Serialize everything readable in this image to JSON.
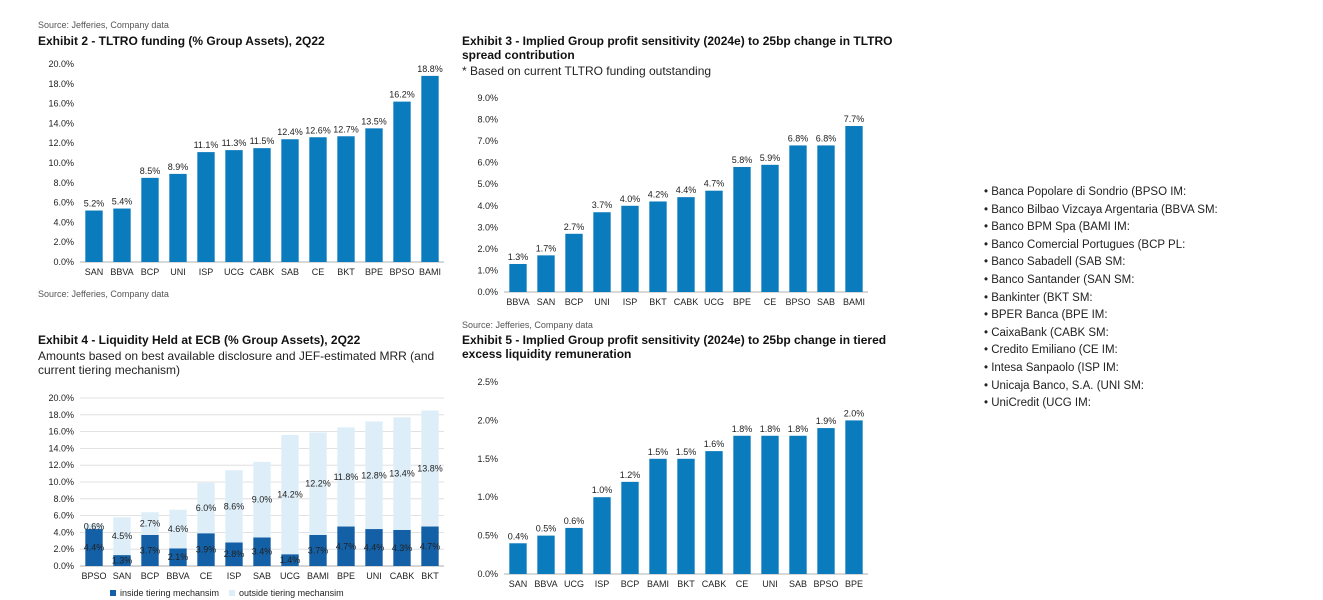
{
  "exhibit2": {
    "source": "Source: Jefferies, Company data",
    "title": "Exhibit 2 - TLTRO funding (% Group Assets), 2Q22"
  },
  "exhibit3": {
    "title_line1": "Exhibit 3 - Implied Group profit sensitivity (2024e) to 25bp change in TLTRO",
    "title_line2": "spread contribution",
    "subtitle": "* Based on current TLTRO funding outstanding",
    "source_below": "Source: Jefferies, Company data"
  },
  "exhibit4": {
    "source": "Source: Jefferies, Company data",
    "title": "Exhibit 4 - Liquidity Held at ECB (% Group Assets), 2Q22",
    "subtitle_line1": "Amounts based on best available disclosure and JEF-estimated MRR (and",
    "subtitle_line2": "current tiering mechanism)"
  },
  "exhibit5": {
    "title_line1": "Exhibit 5 - Implied Group profit sensitivity (2024e) to 25bp change in tiered",
    "title_line2": "excess liquidity remuneration"
  },
  "bank_list": [
    "• Banca Popolare di Sondrio (BPSO IM:",
    "• Banco Bilbao Vizcaya Argentaria (BBVA SM:",
    "• Banco BPM Spa (BAMI IM:",
    "• Banco Comercial Portugues (BCP PL:",
    "• Banco Sabadell (SAB SM:",
    "• Banco Santander (SAN SM:",
    "• Bankinter (BKT SM:",
    "• BPER Banca (BPE IM:",
    "• CaixaBank (CABK SM:",
    "• Credito Emiliano (CE IM:",
    "• Intesa Sanpaolo (ISP IM:",
    "• Unicaja Banco, S.A. (UNI SM:",
    "• UniCredit (UCG IM:"
  ],
  "colors": {
    "bar": "#0a7bbd",
    "light": "#ddeef8",
    "dark": "#1460a6"
  },
  "chart_data": [
    {
      "id": "ex2",
      "type": "bar",
      "categories": [
        "SAN",
        "BBVA",
        "BCP",
        "UNI",
        "ISP",
        "UCG",
        "CABK",
        "SAB",
        "CE",
        "BKT",
        "BPE",
        "BPSO",
        "BAMI"
      ],
      "values": [
        5.2,
        5.4,
        8.5,
        8.9,
        11.1,
        11.3,
        11.5,
        12.4,
        12.6,
        12.7,
        13.5,
        16.2,
        18.8
      ],
      "labels": [
        "5.2%",
        "5.4%",
        "8.5%",
        "8.9%",
        "11.1%",
        "11.3%",
        "11.5%",
        "12.4%",
        "12.6%",
        "12.7%",
        "13.5%",
        "16.2%",
        "18.8%"
      ],
      "ylim": [
        0,
        20
      ],
      "yticks": [
        "0.0%",
        "2.0%",
        "4.0%",
        "6.0%",
        "8.0%",
        "10.0%",
        "12.0%",
        "14.0%",
        "16.0%",
        "18.0%",
        "20.0%"
      ],
      "title": "Exhibit 2 - TLTRO funding (% Group Assets), 2Q22",
      "grid": false
    },
    {
      "id": "ex3",
      "type": "bar",
      "categories": [
        "BBVA",
        "SAN",
        "BCP",
        "UNI",
        "ISP",
        "BKT",
        "CABK",
        "UCG",
        "BPE",
        "CE",
        "BPSO",
        "SAB",
        "BAMI"
      ],
      "values": [
        1.3,
        1.7,
        2.7,
        3.7,
        4.0,
        4.2,
        4.4,
        4.7,
        5.8,
        5.9,
        6.8,
        6.8,
        7.7
      ],
      "labels": [
        "1.3%",
        "1.7%",
        "2.7%",
        "3.7%",
        "4.0%",
        "4.2%",
        "4.4%",
        "4.7%",
        "5.8%",
        "5.9%",
        "6.8%",
        "6.8%",
        "7.7%"
      ],
      "ylim": [
        0,
        9
      ],
      "yticks": [
        "0.0%",
        "1.0%",
        "2.0%",
        "3.0%",
        "4.0%",
        "5.0%",
        "6.0%",
        "7.0%",
        "8.0%",
        "9.0%"
      ],
      "title": "Exhibit 3 - Implied Group profit sensitivity (2024e) to 25bp change in TLTRO spread contribution",
      "grid": false
    },
    {
      "id": "ex4",
      "type": "bar",
      "stacked": true,
      "categories": [
        "BPSO",
        "SAN",
        "BCP",
        "BBVA",
        "CE",
        "ISP",
        "SAB",
        "UCG",
        "BAMI",
        "BPE",
        "UNI",
        "CABK",
        "BKT"
      ],
      "series": [
        {
          "name": "inside tiering mechansim",
          "values": [
            4.4,
            1.3,
            3.7,
            2.1,
            3.9,
            2.8,
            3.4,
            1.4,
            3.7,
            4.7,
            4.4,
            4.3,
            4.7
          ],
          "labels": [
            "4.4%",
            "1.3%",
            "3.7%",
            "2.1%",
            "3.9%",
            "2.8%",
            "3.4%",
            "1.4%",
            "3.7%",
            "4.7%",
            "4.4%",
            "4.3%",
            "4.7%"
          ]
        },
        {
          "name": "outside tiering mechansim",
          "values": [
            0.6,
            4.5,
            2.7,
            4.6,
            6.0,
            8.6,
            9.0,
            14.2,
            12.2,
            11.8,
            12.8,
            13.4,
            13.8
          ],
          "labels": [
            "0.6%",
            "4.5%",
            "2.7%",
            "4.6%",
            "6.0%",
            "8.6%",
            "9.0%",
            "14.2%",
            "12.2%",
            "11.8%",
            "12.8%",
            "13.4%",
            "13.8%"
          ]
        }
      ],
      "ylim": [
        0,
        20
      ],
      "yticks": [
        "0.0%",
        "2.0%",
        "4.0%",
        "6.0%",
        "8.0%",
        "10.0%",
        "12.0%",
        "14.0%",
        "16.0%",
        "18.0%",
        "20.0%"
      ],
      "title": "Exhibit 4 - Liquidity Held at ECB (% Group Assets), 2Q22",
      "legend": "bottom",
      "grid": true
    },
    {
      "id": "ex5",
      "type": "bar",
      "categories": [
        "SAN",
        "BBVA",
        "UCG",
        "ISP",
        "BCP",
        "BAMI",
        "BKT",
        "CABK",
        "CE",
        "UNI",
        "SAB",
        "BPSO",
        "BPE"
      ],
      "values": [
        0.4,
        0.5,
        0.6,
        1.0,
        1.2,
        1.5,
        1.5,
        1.6,
        1.8,
        1.8,
        1.8,
        1.9,
        2.0
      ],
      "labels": [
        "0.4%",
        "0.5%",
        "0.6%",
        "1.0%",
        "1.2%",
        "1.5%",
        "1.5%",
        "1.6%",
        "1.8%",
        "1.8%",
        "1.8%",
        "1.9%",
        "2.0%"
      ],
      "ylim": [
        0,
        2.5
      ],
      "yticks": [
        "0.0%",
        "0.5%",
        "1.0%",
        "1.5%",
        "2.0%",
        "2.5%"
      ],
      "title": "Exhibit 5 - Implied Group profit sensitivity (2024e) to 25bp change in tiered excess liquidity remuneration",
      "grid": false
    }
  ]
}
